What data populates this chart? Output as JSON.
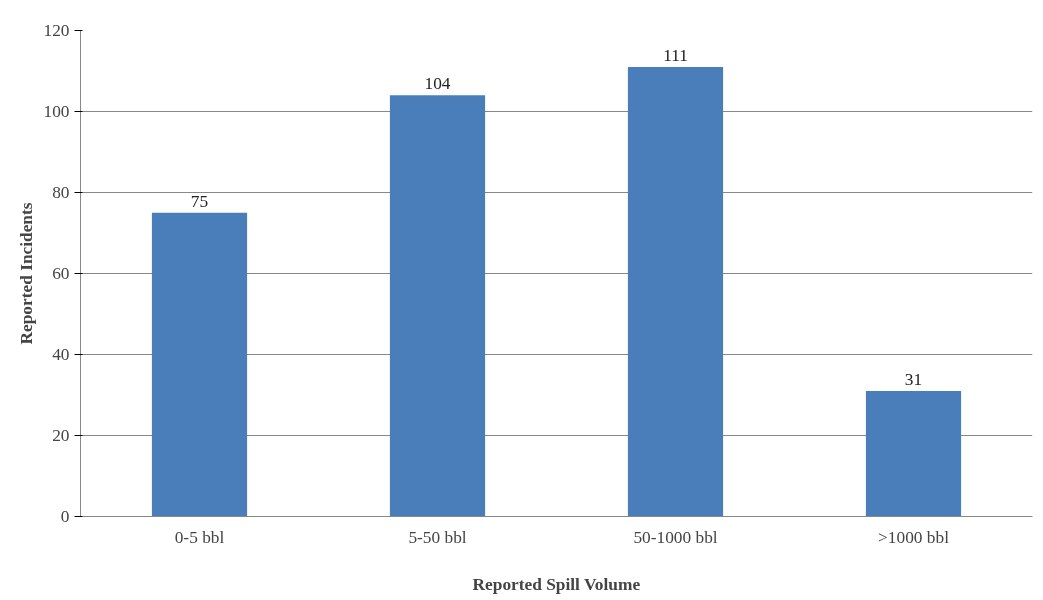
{
  "chart_data": {
    "type": "bar",
    "xlabel": "Reported Spill Volume",
    "ylabel": "Reported Incidents",
    "categories": [
      "0-5 bbl",
      "5-50 bbl",
      "50-1000 bbl",
      ">1000 bbl"
    ],
    "values": [
      75,
      104,
      111,
      31
    ],
    "color": "#4a7ebb",
    "ylim": [
      0,
      120
    ],
    "yticks": [
      0,
      20,
      40,
      60,
      80,
      100,
      120
    ],
    "grid": "y",
    "data_labels": true
  }
}
